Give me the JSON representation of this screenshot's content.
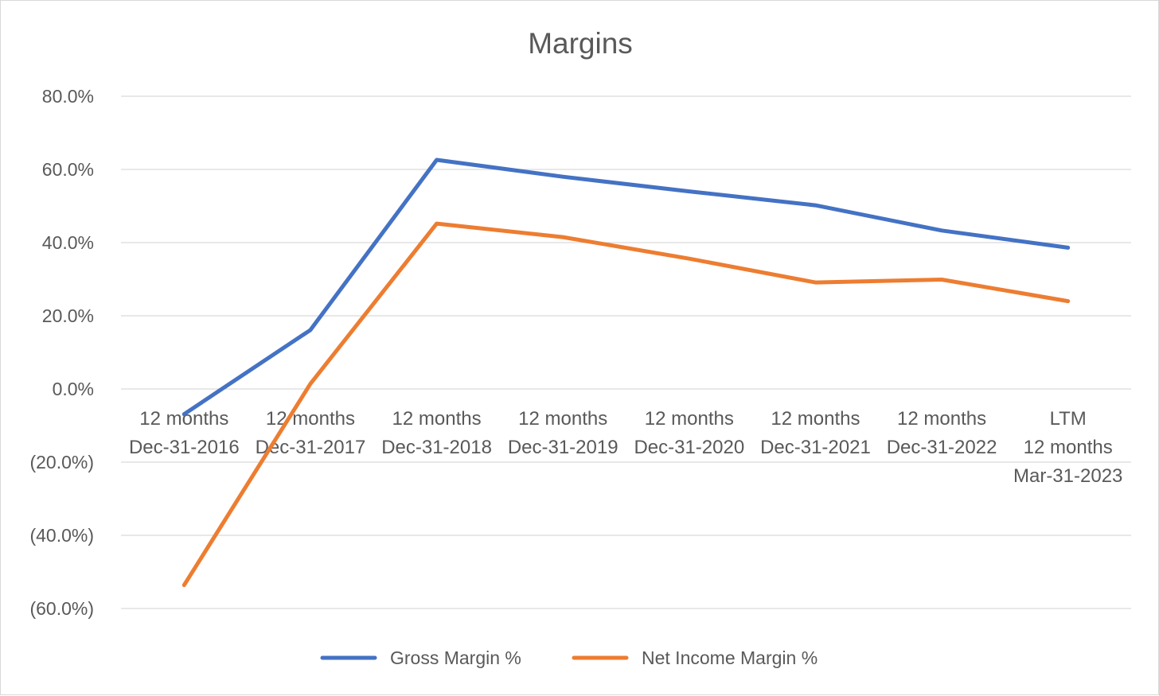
{
  "chart_data": {
    "type": "line",
    "title": "Margins",
    "xlabel": "",
    "ylabel": "",
    "ylim": [
      -60,
      80
    ],
    "y_ticks": [
      80,
      60,
      40,
      20,
      0,
      -20,
      -40,
      -60
    ],
    "y_tick_labels": [
      "80.0%",
      "60.0%",
      "40.0%",
      "20.0%",
      "0.0%",
      "(20.0%)",
      "(40.0%)",
      "(60.0%)"
    ],
    "grid": true,
    "legend_position": "bottom",
    "categories": [
      [
        "12 months",
        "Dec-31-2016"
      ],
      [
        "12 months",
        "Dec-31-2017"
      ],
      [
        "12 months",
        "Dec-31-2018"
      ],
      [
        "12 months",
        "Dec-31-2019"
      ],
      [
        "12 months",
        "Dec-31-2020"
      ],
      [
        "12 months",
        "Dec-31-2021"
      ],
      [
        "12 months",
        "Dec-31-2022"
      ],
      [
        "LTM",
        "12 months",
        "Mar-31-2023"
      ]
    ],
    "series": [
      {
        "name": "Gross Margin %",
        "color": "#4472C4",
        "values": [
          -6.9,
          16.1,
          62.6,
          58.0,
          54.0,
          50.2,
          43.3,
          38.6
        ]
      },
      {
        "name": "Net Income Margin %",
        "color": "#ED7D31",
        "values": [
          -53.6,
          1.4,
          45.2,
          41.5,
          35.6,
          29.1,
          29.9,
          24.0
        ]
      }
    ]
  }
}
